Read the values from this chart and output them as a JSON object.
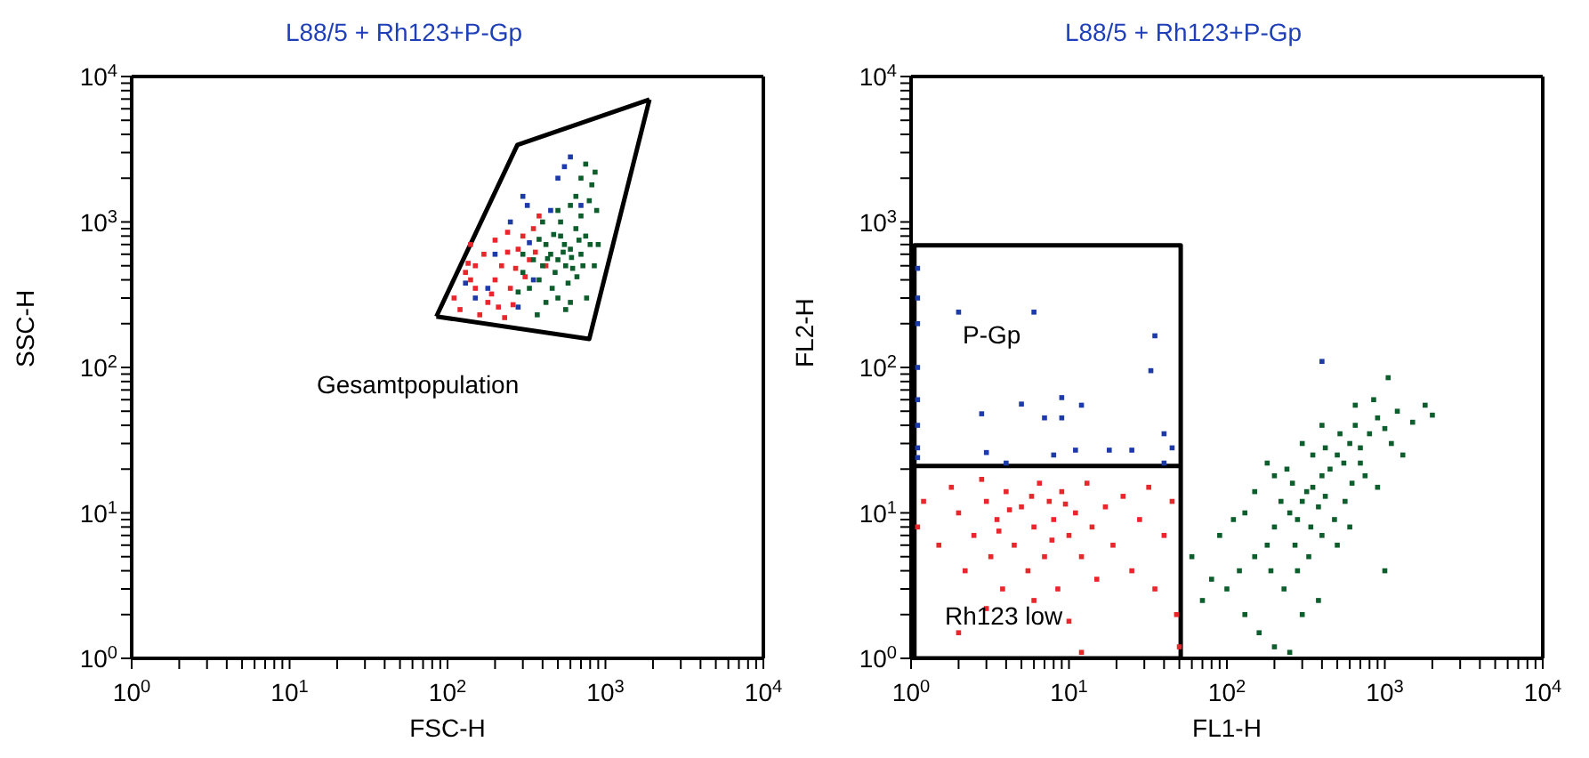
{
  "chart_data": [
    {
      "type": "scatter",
      "title": "L88/5 + Rh123+P-Gp",
      "xlabel": "FSC-H",
      "ylabel": "SSC-H",
      "log": "xy",
      "marker": "square",
      "xlim": [
        1,
        10000
      ],
      "ylim": [
        1,
        10000
      ],
      "xticks": [
        {
          "value": 1,
          "label": "10$^{0}$"
        },
        {
          "value": 10,
          "label": "10$^{1}$"
        },
        {
          "value": 100,
          "label": "10$^{2}$"
        },
        {
          "value": 1000,
          "label": "10$^{3}$"
        },
        {
          "value": 10000,
          "label": "10$^{4}$"
        },
        {
          "value": 2,
          "label": null
        },
        {
          "value": 3,
          "label": null
        },
        {
          "value": 4,
          "label": null
        },
        {
          "value": 5,
          "label": null
        },
        {
          "value": 6,
          "label": null
        },
        {
          "value": 7,
          "label": null
        },
        {
          "value": 8,
          "label": null
        },
        {
          "value": 9,
          "label": null
        },
        {
          "value": 20,
          "label": null
        },
        {
          "value": 30,
          "label": null
        },
        {
          "value": 40,
          "label": null
        },
        {
          "value": 50,
          "label": null
        },
        {
          "value": 60,
          "label": null
        },
        {
          "value": 70,
          "label": null
        },
        {
          "value": 80,
          "label": null
        },
        {
          "value": 90,
          "label": null
        },
        {
          "value": 200,
          "label": null
        },
        {
          "value": 300,
          "label": null
        },
        {
          "value": 400,
          "label": null
        },
        {
          "value": 500,
          "label": null
        },
        {
          "value": 600,
          "label": null
        },
        {
          "value": 700,
          "label": null
        },
        {
          "value": 800,
          "label": null
        },
        {
          "value": 900,
          "label": null
        },
        {
          "value": 2000,
          "label": null
        },
        {
          "value": 3000,
          "label": null
        },
        {
          "value": 4000,
          "label": null
        },
        {
          "value": 5000,
          "label": null
        },
        {
          "value": 6000,
          "label": null
        },
        {
          "value": 7000,
          "label": null
        },
        {
          "value": 8000,
          "label": null
        },
        {
          "value": 9000,
          "label": null
        }
      ],
      "yticks": [
        {
          "value": 1,
          "label": "10$^{0}$"
        },
        {
          "value": 10,
          "label": "10$^{1}$"
        },
        {
          "value": 100,
          "label": "10$^{2}$"
        },
        {
          "value": 1000,
          "label": "10$^{3}$"
        },
        {
          "value": 10000,
          "label": "10$^{4}$"
        },
        {
          "value": 2,
          "label": null
        },
        {
          "value": 3,
          "label": null
        },
        {
          "value": 4,
          "label": null
        },
        {
          "value": 5,
          "label": null
        },
        {
          "value": 6,
          "label": null
        },
        {
          "value": 7,
          "label": null
        },
        {
          "value": 8,
          "label": null
        },
        {
          "value": 9,
          "label": null
        },
        {
          "value": 20,
          "label": null
        },
        {
          "value": 30,
          "label": null
        },
        {
          "value": 40,
          "label": null
        },
        {
          "value": 50,
          "label": null
        },
        {
          "value": 60,
          "label": null
        },
        {
          "value": 70,
          "label": null
        },
        {
          "value": 80,
          "label": null
        },
        {
          "value": 90,
          "label": null
        },
        {
          "value": 200,
          "label": null
        },
        {
          "value": 300,
          "label": null
        },
        {
          "value": 400,
          "label": null
        },
        {
          "value": 500,
          "label": null
        },
        {
          "value": 600,
          "label": null
        },
        {
          "value": 700,
          "label": null
        },
        {
          "value": 800,
          "label": null
        },
        {
          "value": 900,
          "label": null
        },
        {
          "value": 2000,
          "label": null
        },
        {
          "value": 3000,
          "label": null
        },
        {
          "value": 4000,
          "label": null
        },
        {
          "value": 5000,
          "label": null
        },
        {
          "value": 6000,
          "label": null
        },
        {
          "value": 7000,
          "label": null
        },
        {
          "value": 8000,
          "label": null
        },
        {
          "value": 9000,
          "label": null
        }
      ],
      "annotations": [
        "Gesamtpopulation"
      ],
      "series": [
        {
          "color": "#e8262b",
          "x": [
            110,
            130,
            150,
            120,
            170,
            200,
            180,
            140,
            220,
            250,
            160,
            280,
            300,
            350,
            240,
            420,
            380,
            260,
            200,
            230,
            190,
            140,
            310,
            330,
            240,
            135,
            270,
            210,
            360,
            150
          ],
          "values": [
            300,
            450,
            350,
            250,
            600,
            400,
            280,
            700,
            500,
            350,
            230,
            650,
            800,
            900,
            620,
            500,
            1100,
            270,
            750,
            220,
            320,
            400,
            420,
            550,
            850,
            520,
            480,
            260,
            620,
            500
          ]
        },
        {
          "color": "#1c3aa8",
          "x": [
            150,
            200,
            250,
            300,
            600,
            500,
            350,
            180,
            450,
            700,
            280,
            330,
            130,
            550,
            320
          ],
          "values": [
            300,
            600,
            1000,
            1500,
            2800,
            2000,
            400,
            350,
            1200,
            1300,
            260,
            720,
            380,
            2400,
            1300
          ]
        },
        {
          "color": "#0d5e2c",
          "x": [
            450,
            500,
            550,
            400,
            600,
            480,
            520,
            650,
            700,
            380,
            420,
            560,
            620,
            700,
            750,
            800,
            460,
            500,
            580,
            350,
            300,
            330,
            400,
            600,
            650,
            700,
            750,
            820,
            880,
            900,
            850,
            600,
            420,
            280,
            300,
            520,
            680,
            540,
            470,
            430,
            610,
            660,
            720,
            380,
            500,
            860,
            790,
            560,
            370,
            760
          ],
          "values": [
            600,
            550,
            700,
            500,
            650,
            450,
            800,
            900,
            600,
            400,
            700,
            500,
            480,
            1100,
            800,
            700,
            350,
            300,
            380,
            550,
            450,
            350,
            1000,
            1300,
            1500,
            2000,
            2500,
            1800,
            1200,
            700,
            500,
            280,
            280,
            330,
            600,
            1000,
            750,
            620,
            820,
            560,
            570,
            420,
            500,
            760,
            1200,
            2200,
            1400,
            250,
            230,
            300
          ]
        },
        {
          "type": "line",
          "marker": "none",
          "color": "#000000",
          "x": [
            85,
            277,
            1900
          ],
          "values": [
            224,
            3390,
            6950
          ]
        },
        {
          "type": "line",
          "marker": "none",
          "color": "#000000",
          "x": [
            85,
            790,
            1900
          ],
          "values": [
            224,
            157,
            6950
          ]
        }
      ]
    },
    {
      "type": "scatter",
      "title": "L88/5 + Rh123+P-Gp",
      "xlabel": "FL1-H",
      "ylabel": "FL2-H",
      "log": "xy",
      "marker": "square",
      "xlim": [
        1,
        10000
      ],
      "ylim": [
        1,
        10000
      ],
      "xticks": [
        {
          "value": 1,
          "label": "10$^{0}$"
        },
        {
          "value": 10,
          "label": "10$^{1}$"
        },
        {
          "value": 100,
          "label": "10$^{2}$"
        },
        {
          "value": 1000,
          "label": "10$^{3}$"
        },
        {
          "value": 10000,
          "label": "10$^{4}$"
        },
        {
          "value": 2,
          "label": null
        },
        {
          "value": 3,
          "label": null
        },
        {
          "value": 4,
          "label": null
        },
        {
          "value": 5,
          "label": null
        },
        {
          "value": 6,
          "label": null
        },
        {
          "value": 7,
          "label": null
        },
        {
          "value": 8,
          "label": null
        },
        {
          "value": 9,
          "label": null
        },
        {
          "value": 20,
          "label": null
        },
        {
          "value": 30,
          "label": null
        },
        {
          "value": 40,
          "label": null
        },
        {
          "value": 50,
          "label": null
        },
        {
          "value": 60,
          "label": null
        },
        {
          "value": 70,
          "label": null
        },
        {
          "value": 80,
          "label": null
        },
        {
          "value": 90,
          "label": null
        },
        {
          "value": 200,
          "label": null
        },
        {
          "value": 300,
          "label": null
        },
        {
          "value": 400,
          "label": null
        },
        {
          "value": 500,
          "label": null
        },
        {
          "value": 600,
          "label": null
        },
        {
          "value": 700,
          "label": null
        },
        {
          "value": 800,
          "label": null
        },
        {
          "value": 900,
          "label": null
        },
        {
          "value": 2000,
          "label": null
        },
        {
          "value": 3000,
          "label": null
        },
        {
          "value": 4000,
          "label": null
        },
        {
          "value": 5000,
          "label": null
        },
        {
          "value": 6000,
          "label": null
        },
        {
          "value": 7000,
          "label": null
        },
        {
          "value": 8000,
          "label": null
        },
        {
          "value": 9000,
          "label": null
        }
      ],
      "yticks": [
        {
          "value": 1,
          "label": "10$^{0}$"
        },
        {
          "value": 10,
          "label": "10$^{1}$"
        },
        {
          "value": 100,
          "label": "10$^{2}$"
        },
        {
          "value": 1000,
          "label": "10$^{3}$"
        },
        {
          "value": 10000,
          "label": "10$^{4}$"
        },
        {
          "value": 2,
          "label": null
        },
        {
          "value": 3,
          "label": null
        },
        {
          "value": 4,
          "label": null
        },
        {
          "value": 5,
          "label": null
        },
        {
          "value": 6,
          "label": null
        },
        {
          "value": 7,
          "label": null
        },
        {
          "value": 8,
          "label": null
        },
        {
          "value": 9,
          "label": null
        },
        {
          "value": 20,
          "label": null
        },
        {
          "value": 30,
          "label": null
        },
        {
          "value": 40,
          "label": null
        },
        {
          "value": 50,
          "label": null
        },
        {
          "value": 60,
          "label": null
        },
        {
          "value": 70,
          "label": null
        },
        {
          "value": 80,
          "label": null
        },
        {
          "value": 90,
          "label": null
        },
        {
          "value": 200,
          "label": null
        },
        {
          "value": 300,
          "label": null
        },
        {
          "value": 400,
          "label": null
        },
        {
          "value": 500,
          "label": null
        },
        {
          "value": 600,
          "label": null
        },
        {
          "value": 700,
          "label": null
        },
        {
          "value": 800,
          "label": null
        },
        {
          "value": 900,
          "label": null
        },
        {
          "value": 2000,
          "label": null
        },
        {
          "value": 3000,
          "label": null
        },
        {
          "value": 4000,
          "label": null
        },
        {
          "value": 5000,
          "label": null
        },
        {
          "value": 6000,
          "label": null
        },
        {
          "value": 7000,
          "label": null
        },
        {
          "value": 8000,
          "label": null
        },
        {
          "value": 9000,
          "label": null
        }
      ],
      "annotations": [
        "P-Gp",
        "Rh123 low"
      ],
      "series": [
        {
          "color": "#0d5e2c",
          "x": [
            300,
            250,
            350,
            200,
            400,
            280,
            320,
            450,
            500,
            380,
            220,
            260,
            340,
            420,
            550,
            600,
            700,
            800,
            650,
            900,
            1000,
            1200,
            1500,
            1800,
            2000,
            750,
            180,
            150,
            120,
            100,
            80,
            70,
            90,
            60,
            130,
            160,
            200,
            250,
            300,
            230,
            190,
            270,
            330,
            400,
            480,
            560,
            620,
            700,
            1100,
            1300,
            850,
            1050,
            400,
            300,
            350,
            240,
            200,
            150,
            110,
            130,
            500,
            600,
            900,
            1000,
            180,
            420,
            520,
            650,
            380,
            280
          ],
          "values": [
            12,
            10,
            15,
            8,
            18,
            9,
            14,
            20,
            25,
            11,
            12,
            16,
            8,
            13,
            22,
            30,
            28,
            35,
            40,
            45,
            38,
            50,
            42,
            55,
            47,
            18,
            6,
            5,
            4,
            3,
            3.5,
            2.5,
            7,
            5,
            2,
            1.5,
            1.2,
            1.1,
            2,
            3,
            4,
            6,
            5,
            7,
            9,
            12,
            16,
            22,
            30,
            25,
            60,
            85,
            40,
            30,
            25,
            20,
            18,
            14,
            9,
            10,
            6,
            8,
            15,
            4,
            22,
            28,
            35,
            55,
            2.5,
            4
          ]
        },
        {
          "color": "#e8262b",
          "x": [
            1.1,
            1.2,
            1.5,
            1.8,
            2,
            2.2,
            2.5,
            2.8,
            3,
            3.2,
            3.5,
            3.8,
            4,
            4.5,
            5,
            5.5,
            6,
            6.5,
            7,
            7.5,
            8,
            8.5,
            9,
            10,
            11,
            12,
            13,
            14,
            15,
            17,
            19,
            22,
            25,
            28,
            32,
            35,
            40,
            45,
            48,
            50,
            3,
            6,
            10,
            12,
            2,
            4.2,
            7.8,
            9.5,
            5.8,
            3.6
          ],
          "values": [
            8,
            12,
            6,
            15,
            10,
            4,
            7,
            17,
            12,
            5,
            9,
            3,
            14,
            6,
            11,
            4,
            8,
            16,
            5,
            12,
            9,
            3,
            14,
            7,
            10,
            5,
            16,
            8,
            3.5,
            11,
            6,
            13,
            4,
            9,
            15,
            3,
            7,
            12,
            2,
            1.2,
            2.2,
            2.5,
            1.8,
            1.1,
            1.5,
            10.5,
            6.5,
            11.5,
            13,
            7.5
          ]
        },
        {
          "color": "#1c3aa8",
          "x": [
            1.1,
            1.1,
            1.1,
            1.1,
            1.1,
            1.1,
            1.1,
            1.1,
            2,
            6,
            2.8,
            5,
            7,
            9,
            9,
            12,
            8,
            11,
            4,
            3,
            18,
            25,
            33,
            35,
            40,
            45,
            40,
            400
          ],
          "values": [
            480,
            300,
            200,
            100,
            60,
            40,
            28,
            24,
            240,
            240,
            48,
            56,
            45,
            62,
            45,
            55,
            25,
            27,
            22,
            26,
            27,
            27,
            95,
            165,
            35,
            28,
            22,
            110
          ]
        },
        {
          "type": "line",
          "marker": "none",
          "color": "#000000",
          "x": [
            1.05,
            1.05,
            51,
            51,
            1.05,
            1.05,
            51,
            51
          ],
          "values": [
            21,
            690,
            690,
            21,
            21,
            1,
            1,
            21
          ]
        }
      ]
    }
  ]
}
